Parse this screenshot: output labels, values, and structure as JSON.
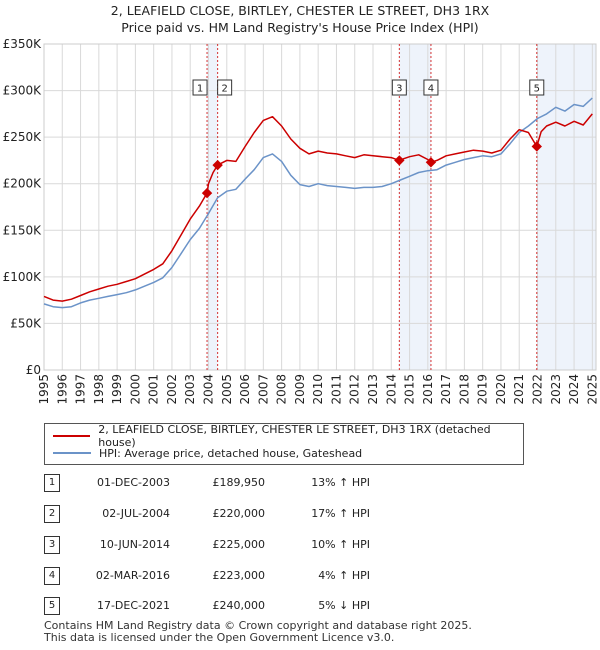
{
  "title_line1": "2, LEAFIELD CLOSE, BIRTLEY, CHESTER LE STREET, DH3 1RX",
  "title_line2": "Price paid vs. HM Land Registry's House Price Index (HPI)",
  "colors": {
    "property": "#cc0000",
    "hpi": "#6b93c8",
    "band": "#eef3fb",
    "vline": "#cc0000"
  },
  "chart_data": {
    "type": "line",
    "ylabel": "",
    "xlabel": "",
    "ylim": [
      0,
      350000
    ],
    "xlim": [
      1995,
      2025.2
    ],
    "y_ticks": [
      0,
      50000,
      100000,
      150000,
      200000,
      250000,
      300000,
      350000
    ],
    "y_tick_labels": [
      "£0",
      "£50K",
      "£100K",
      "£150K",
      "£200K",
      "£250K",
      "£300K",
      "£350K"
    ],
    "x_ticks": [
      "1995",
      "1996",
      "1997",
      "1998",
      "1999",
      "2000",
      "2001",
      "2002",
      "2003",
      "2004",
      "2005",
      "2006",
      "2007",
      "2008",
      "2009",
      "2010",
      "2011",
      "2012",
      "2013",
      "2014",
      "2015",
      "2016",
      "2017",
      "2018",
      "2019",
      "2020",
      "2021",
      "2022",
      "2023",
      "2024",
      "2025"
    ],
    "series": [
      {
        "name": "2, LEAFIELD CLOSE, BIRTLEY, CHESTER LE STREET, DH3 1RX (detached house)",
        "color": "#cc0000",
        "x": [
          1995,
          1995.5,
          1996,
          1996.5,
          1997,
          1997.5,
          1998,
          1998.5,
          1999,
          1999.5,
          2000,
          2000.5,
          2001,
          2001.5,
          2002,
          2002.5,
          2003,
          2003.5,
          2003.92,
          2004,
          2004.25,
          2004.5,
          2005,
          2005.5,
          2006,
          2006.5,
          2007,
          2007.5,
          2008,
          2008.5,
          2009,
          2009.5,
          2010,
          2010.5,
          2011,
          2011.5,
          2012,
          2012.5,
          2013,
          2013.5,
          2014,
          2014.44,
          2014.7,
          2015,
          2015.5,
          2016,
          2016.17,
          2016.5,
          2017,
          2017.5,
          2018,
          2018.5,
          2019,
          2019.5,
          2020,
          2020.5,
          2021,
          2021.5,
          2021.96,
          2022.2,
          2022.5,
          2023,
          2023.5,
          2024,
          2024.5,
          2025
        ],
        "y": [
          79000,
          75000,
          74000,
          76000,
          80000,
          84000,
          87000,
          90000,
          92000,
          95000,
          98000,
          103000,
          108000,
          114000,
          128000,
          145000,
          162000,
          176000,
          189950,
          200000,
          212000,
          220000,
          225000,
          224000,
          240000,
          255000,
          268000,
          272000,
          262000,
          248000,
          238000,
          232000,
          235000,
          233000,
          232000,
          230000,
          228000,
          231000,
          230000,
          229000,
          228000,
          225000,
          227000,
          229000,
          231000,
          226000,
          223000,
          225000,
          230000,
          232000,
          234000,
          236000,
          235000,
          233000,
          236000,
          248000,
          258000,
          255000,
          240000,
          256000,
          262000,
          266000,
          262000,
          267000,
          263000,
          275000
        ]
      },
      {
        "name": "HPI: Average price, detached house, Gateshead",
        "color": "#6b93c8",
        "x": [
          1995,
          1995.5,
          1996,
          1996.5,
          1997,
          1997.5,
          1998,
          1998.5,
          1999,
          1999.5,
          2000,
          2000.5,
          2001,
          2001.5,
          2002,
          2002.5,
          2003,
          2003.5,
          2004,
          2004.5,
          2005,
          2005.5,
          2006,
          2006.5,
          2007,
          2007.5,
          2008,
          2008.5,
          2009,
          2009.5,
          2010,
          2010.5,
          2011,
          2011.5,
          2012,
          2012.5,
          2013,
          2013.5,
          2014,
          2014.5,
          2015,
          2015.5,
          2016,
          2016.5,
          2017,
          2017.5,
          2018,
          2018.5,
          2019,
          2019.5,
          2020,
          2020.5,
          2021,
          2021.5,
          2022,
          2022.5,
          2023,
          2023.5,
          2024,
          2024.5,
          2025
        ],
        "y": [
          71000,
          68000,
          67000,
          68000,
          72000,
          75000,
          77000,
          79000,
          81000,
          83000,
          86000,
          90000,
          94000,
          99000,
          110000,
          125000,
          140000,
          152000,
          168000,
          185000,
          192000,
          194000,
          205000,
          215000,
          228000,
          232000,
          224000,
          209000,
          199000,
          197000,
          200000,
          198000,
          197000,
          196000,
          195000,
          196000,
          196000,
          197000,
          200000,
          204000,
          208000,
          212000,
          214000,
          215000,
          220000,
          223000,
          226000,
          228000,
          230000,
          229000,
          232000,
          243000,
          255000,
          262000,
          270000,
          275000,
          282000,
          278000,
          285000,
          283000,
          292000
        ]
      }
    ],
    "transactions": [
      {
        "num": "1",
        "x": 2003.92,
        "price": 189950
      },
      {
        "num": "2",
        "x": 2004.5,
        "price": 220000
      },
      {
        "num": "3",
        "x": 2014.44,
        "price": 225000
      },
      {
        "num": "4",
        "x": 2016.17,
        "price": 223000
      },
      {
        "num": "5",
        "x": 2021.96,
        "price": 240000
      }
    ],
    "shaded_bands": [
      [
        2003.92,
        2004.5
      ],
      [
        2014.44,
        2016.17
      ],
      [
        2021.96,
        2025.2
      ]
    ]
  },
  "legend": {
    "property_label": "2, LEAFIELD CLOSE, BIRTLEY, CHESTER LE STREET, DH3 1RX (detached house)",
    "hpi_label": "HPI: Average price, detached house, Gateshead"
  },
  "table": [
    {
      "num": "1",
      "date": "01-DEC-2003",
      "price": "£189,950",
      "hpi": "13% ↑ HPI"
    },
    {
      "num": "2",
      "date": "02-JUL-2004",
      "price": "£220,000",
      "hpi": "17% ↑ HPI"
    },
    {
      "num": "3",
      "date": "10-JUN-2014",
      "price": "£225,000",
      "hpi": "10% ↑ HPI"
    },
    {
      "num": "4",
      "date": "02-MAR-2016",
      "price": "£223,000",
      "hpi": "4% ↑ HPI"
    },
    {
      "num": "5",
      "date": "17-DEC-2021",
      "price": "£240,000",
      "hpi": "5% ↓ HPI"
    }
  ],
  "footer_line1": "Contains HM Land Registry data © Crown copyright and database right 2025.",
  "footer_line2": "This data is licensed under the Open Government Licence v3.0."
}
